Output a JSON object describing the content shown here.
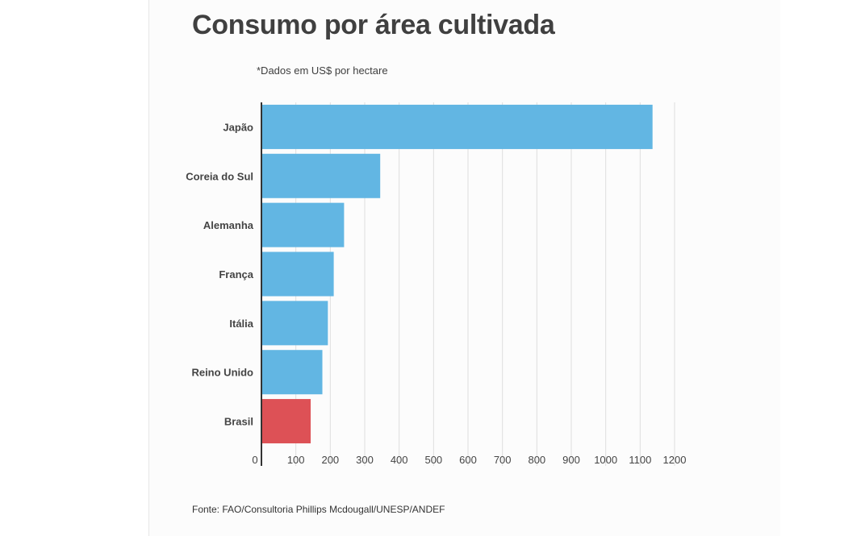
{
  "title": "Consumo por área cultivada",
  "subtitle": "*Dados em US$ por hectare",
  "source": "Fonte: FAO/Consultoria Phillips Mcdougall/UNESP/ANDEF",
  "chart_data": {
    "type": "bar",
    "orientation": "horizontal",
    "categories": [
      "Japão",
      "Coreia do Sul",
      "Alemanha",
      "França",
      "Itália",
      "Reino Unido",
      "Brasil"
    ],
    "values": [
      1136,
      345,
      240,
      210,
      193,
      177,
      143
    ],
    "colors": [
      "#62b6e3",
      "#62b6e3",
      "#62b6e3",
      "#62b6e3",
      "#62b6e3",
      "#62b6e3",
      "#dd5156"
    ],
    "xlim": [
      0,
      1200
    ],
    "xticks": [
      0,
      100,
      200,
      300,
      400,
      500,
      600,
      700,
      800,
      900,
      1000,
      1100,
      1200
    ],
    "grid": true,
    "legend": "none"
  }
}
